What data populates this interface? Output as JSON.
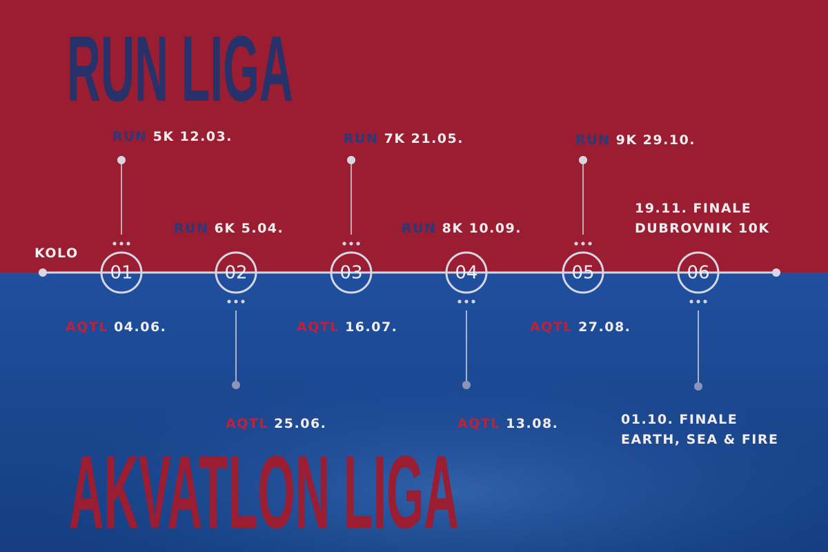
{
  "title_top": "RUN LIGA",
  "title_bottom": "AKVATLON LIGA",
  "axis_label": "KOLO",
  "rounds": [
    "01",
    "02",
    "03",
    "04",
    "05",
    "06"
  ],
  "run_events": [
    {
      "tag": "RUN",
      "text": "5K 12.03."
    },
    {
      "tag": "RUN",
      "text": "6K 5.04."
    },
    {
      "tag": "RUN",
      "text": "7K 21.05."
    },
    {
      "tag": "RUN",
      "text": "8K 10.09."
    },
    {
      "tag": "RUN",
      "text": "9K 29.10."
    }
  ],
  "run_finale": [
    "19.11. FINALE",
    "DUBROVNIK 10K"
  ],
  "aqtl_events": [
    {
      "tag": "AQTL",
      "text": "04.06."
    },
    {
      "tag": "AQTL",
      "text": "25.06."
    },
    {
      "tag": "AQTL",
      "text": "16.07."
    },
    {
      "tag": "AQTL",
      "text": "13.08."
    },
    {
      "tag": "AQTL",
      "text": "27.08."
    }
  ],
  "aqtl_finale": [
    "01.10. FINALE",
    "EARTH, SEA & FIRE"
  ]
}
